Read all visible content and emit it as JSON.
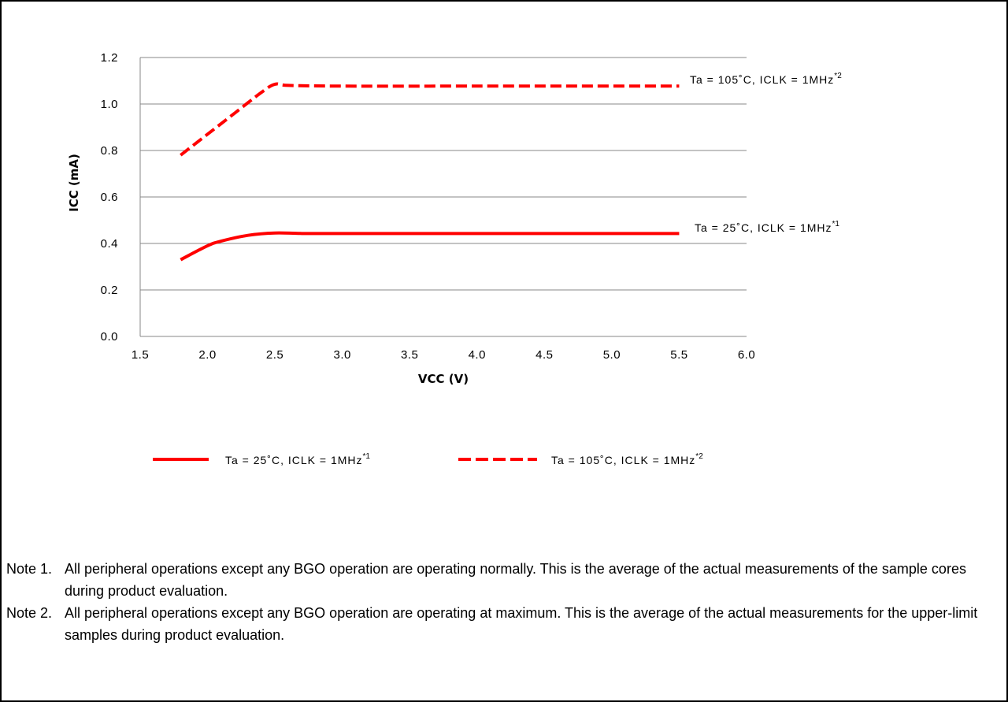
{
  "chart_data": {
    "type": "line",
    "xlabel": "VCC (V)",
    "ylabel": "ICC (mA)",
    "xlim": [
      1.5,
      6.0
    ],
    "ylim": [
      0.0,
      1.2
    ],
    "x_ticks": [
      "1.5",
      "2.0",
      "2.5",
      "3.0",
      "3.5",
      "4.0",
      "4.5",
      "5.0",
      "5.5",
      "6.0"
    ],
    "y_ticks": [
      "0.0",
      "0.2",
      "0.4",
      "0.6",
      "0.8",
      "1.0",
      "1.2"
    ],
    "grid": "horizontal",
    "legend_position": "bottom",
    "series": [
      {
        "name": "Ta = 25˚C, ICLK = 1MHz",
        "superscript": "*1",
        "color": "#ff0000",
        "style": "solid",
        "points": [
          [
            1.8,
            0.33
          ],
          [
            2.0,
            0.39
          ],
          [
            2.1,
            0.41
          ],
          [
            2.3,
            0.435
          ],
          [
            2.5,
            0.445
          ],
          [
            2.7,
            0.443
          ],
          [
            3.0,
            0.443
          ],
          [
            4.0,
            0.443
          ],
          [
            5.0,
            0.443
          ],
          [
            5.5,
            0.443
          ]
        ]
      },
      {
        "name": "Ta = 105˚C, ICLK = 1MHz",
        "superscript": "*2",
        "color": "#ff0000",
        "style": "dashed",
        "points": [
          [
            1.8,
            0.78
          ],
          [
            2.0,
            0.87
          ],
          [
            2.2,
            0.96
          ],
          [
            2.4,
            1.05
          ],
          [
            2.5,
            1.085
          ],
          [
            2.6,
            1.08
          ],
          [
            3.0,
            1.077
          ],
          [
            4.0,
            1.077
          ],
          [
            5.0,
            1.077
          ],
          [
            5.5,
            1.077
          ]
        ]
      }
    ]
  },
  "notes": [
    {
      "label": "Note 1.",
      "text": "All peripheral operations except any BGO operation are operating normally. This is the average of the actual measurements of the sample cores during product evaluation."
    },
    {
      "label": "Note 2.",
      "text": "All peripheral operations except any BGO operation are operating at maximum. This is the average of the actual measurements for the upper-limit samples during product evaluation."
    }
  ]
}
